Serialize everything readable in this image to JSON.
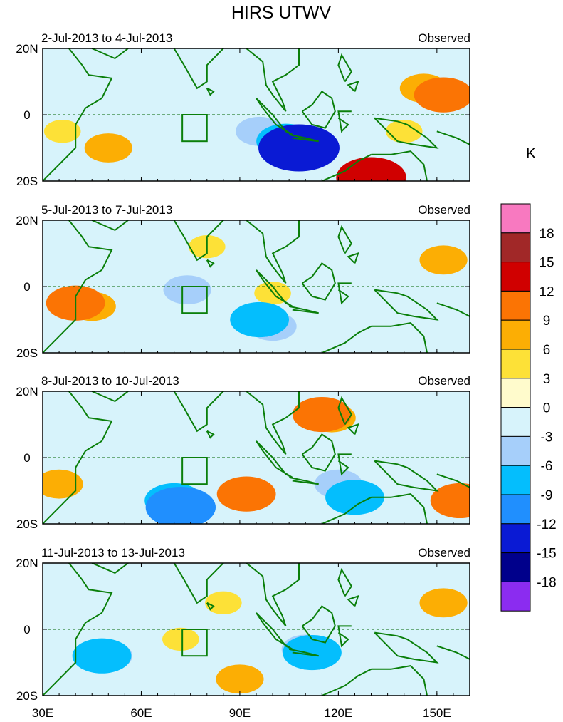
{
  "chart_data": {
    "type": "contour-map",
    "title": "HIRS UTWV",
    "unit": "K",
    "x_axis": {
      "range_deg_e": [
        30,
        160
      ],
      "tick_labels": [
        "30E",
        "60E",
        "90E",
        "120E",
        "150E"
      ],
      "tick_values": [
        30,
        60,
        90,
        120,
        150
      ]
    },
    "y_axis": {
      "range_deg_n": [
        -20,
        20
      ],
      "tick_labels": [
        "20N",
        "0",
        "20S"
      ],
      "tick_values": [
        20,
        0,
        -20
      ]
    },
    "colorbar": {
      "levels": [
        "18",
        "15",
        "12",
        "9",
        "6",
        "3",
        "0",
        "-3",
        "-6",
        "-9",
        "-12",
        "-15",
        "-18"
      ],
      "colors": [
        "#f879c0",
        "#a12828",
        "#d00000",
        "#fb7404",
        "#fcae04",
        "#fde137",
        "#fffbcc",
        "#d7f3fb",
        "#a6cffa",
        "#04befd",
        "#208ffe",
        "#0a1ad4",
        "#00008b",
        "#8b2cf0"
      ]
    },
    "panels": [
      {
        "date_range": "2-Jul-2013 to 4-Jul-2013",
        "label": "Observed",
        "anomalies": [
          {
            "lon": 108,
            "lat": -10,
            "value": -15
          },
          {
            "lon": 104,
            "lat": -8,
            "value": -9
          },
          {
            "lon": 96,
            "lat": -5,
            "value": -6
          },
          {
            "lon": 130,
            "lat": -19,
            "value": 12
          },
          {
            "lon": 146,
            "lat": 8,
            "value": 6
          },
          {
            "lon": 152,
            "lat": 6,
            "value": 9
          },
          {
            "lon": 50,
            "lat": -10,
            "value": 6
          },
          {
            "lon": 36,
            "lat": -5,
            "value": 3
          },
          {
            "lon": 140,
            "lat": -5,
            "value": 3
          },
          {
            "lon": 80,
            "lat": 8,
            "value": -3
          },
          {
            "lon": 60,
            "lat": 8,
            "value": -3
          }
        ]
      },
      {
        "date_range": "5-Jul-2013 to 7-Jul-2013",
        "label": "Observed",
        "anomalies": [
          {
            "lon": 96,
            "lat": -10,
            "value": -9
          },
          {
            "lon": 100,
            "lat": -12,
            "value": -6
          },
          {
            "lon": 40,
            "lat": -5,
            "value": 9
          },
          {
            "lon": 45,
            "lat": -6,
            "value": 6
          },
          {
            "lon": 152,
            "lat": 8,
            "value": 6
          },
          {
            "lon": 100,
            "lat": -2,
            "value": 3
          },
          {
            "lon": 74,
            "lat": -1,
            "value": -6
          },
          {
            "lon": 80,
            "lat": 12,
            "value": 3
          },
          {
            "lon": 130,
            "lat": 0,
            "value": -3
          },
          {
            "lon": 60,
            "lat": 5,
            "value": -3
          }
        ]
      },
      {
        "date_range": "8-Jul-2013 to 10-Jul-2013",
        "label": "Observed",
        "anomalies": [
          {
            "lon": 72,
            "lat": -15,
            "value": -12
          },
          {
            "lon": 70,
            "lat": -13,
            "value": -9
          },
          {
            "lon": 125,
            "lat": -12,
            "value": -9
          },
          {
            "lon": 120,
            "lat": -8,
            "value": -6
          },
          {
            "lon": 92,
            "lat": -11,
            "value": 9
          },
          {
            "lon": 115,
            "lat": 13,
            "value": 9
          },
          {
            "lon": 157,
            "lat": -13,
            "value": 9
          },
          {
            "lon": 118,
            "lat": 12,
            "value": 6
          },
          {
            "lon": 35,
            "lat": -8,
            "value": 6
          },
          {
            "lon": 60,
            "lat": 5,
            "value": -3
          }
        ]
      },
      {
        "date_range": "11-Jul-2013 to 13-Jul-2013",
        "label": "Observed",
        "anomalies": [
          {
            "lon": 48,
            "lat": -8,
            "value": -9
          },
          {
            "lon": 50,
            "lat": -8,
            "value": -6
          },
          {
            "lon": 112,
            "lat": -7,
            "value": -9
          },
          {
            "lon": 110,
            "lat": -6,
            "value": -6
          },
          {
            "lon": 90,
            "lat": -15,
            "value": 6
          },
          {
            "lon": 152,
            "lat": 8,
            "value": 6
          },
          {
            "lon": 72,
            "lat": -3,
            "value": 3
          },
          {
            "lon": 85,
            "lat": 8,
            "value": 3
          },
          {
            "lon": 60,
            "lat": 10,
            "value": -3
          },
          {
            "lon": 140,
            "lat": 5,
            "value": -3
          }
        ]
      }
    ]
  }
}
